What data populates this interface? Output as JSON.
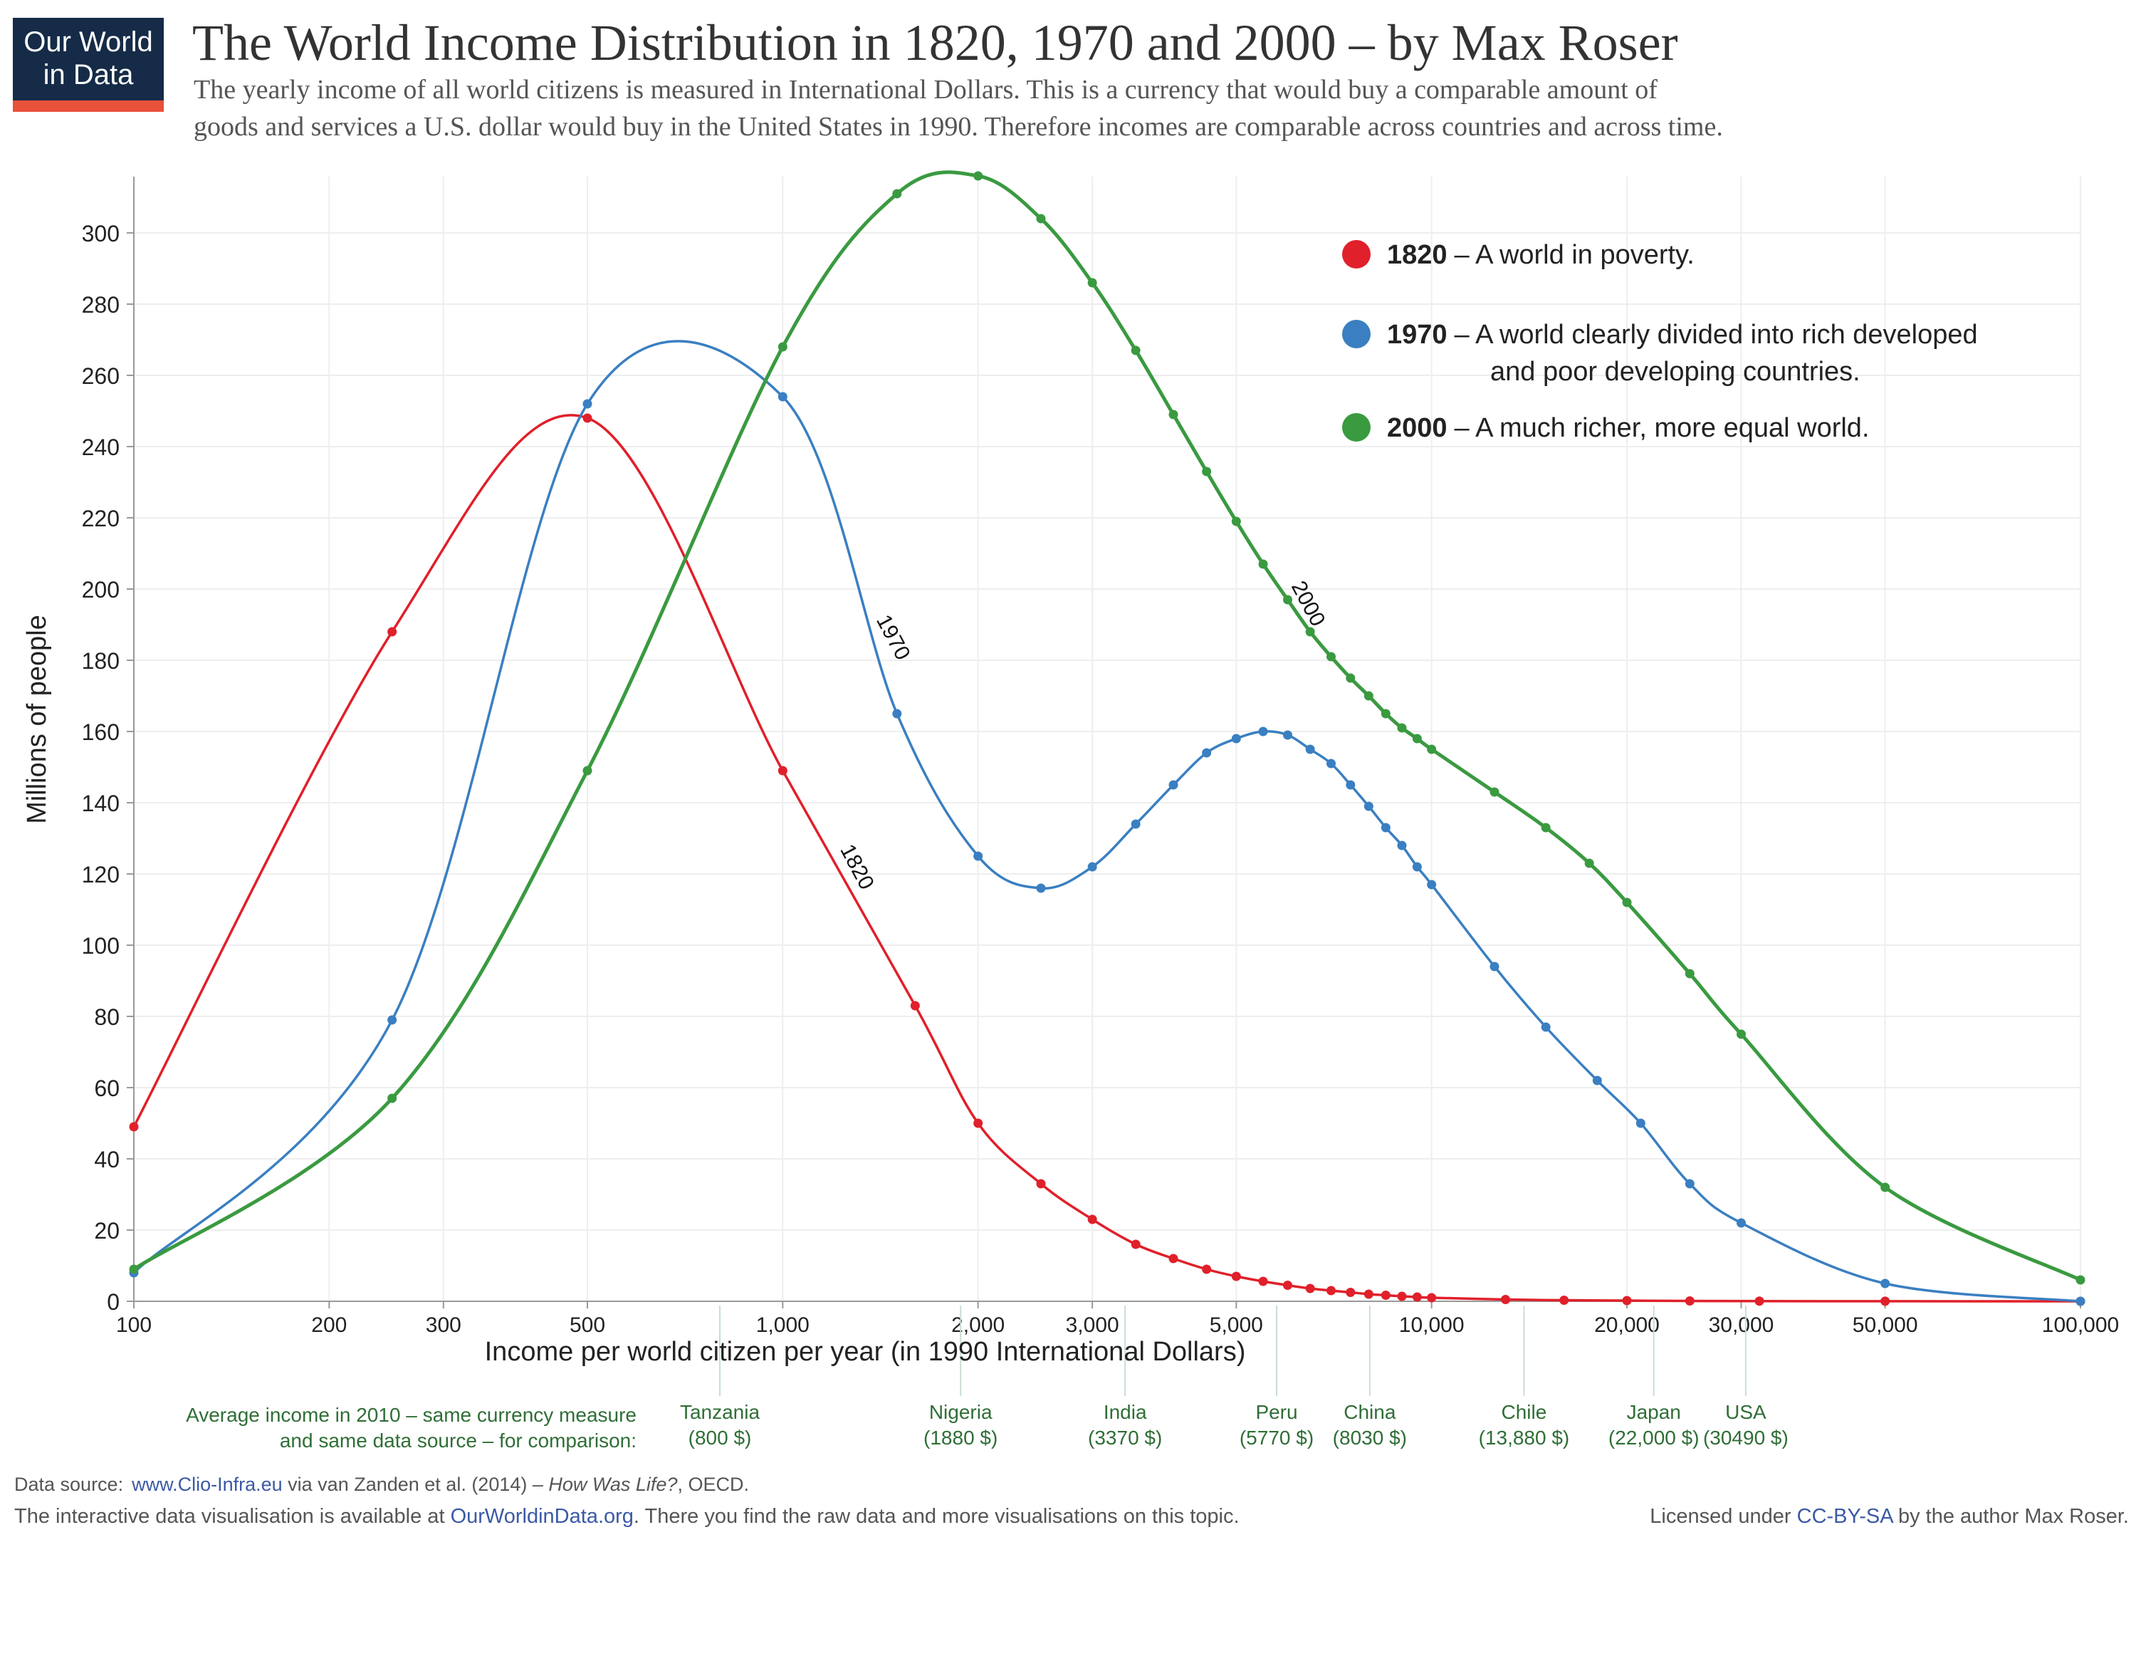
{
  "logo": {
    "line1": "Our World",
    "line2": "in Data",
    "bg_color": "#152b47",
    "stripe_color": "#e8513a"
  },
  "header": {
    "title": "The World Income Distribution in 1820, 1970 and 2000 – by Max Roser",
    "subtitle_line1": "The yearly income of all world citizens is measured in International Dollars. This is a currency that would buy a comparable amount of",
    "subtitle_line2": "goods and services a U.S. dollar would buy in the United States in 1990. Therefore incomes are comparable across countries and across time."
  },
  "chart_data": {
    "type": "line",
    "xlabel": "Income per world citizen per year (in 1990 International Dollars)",
    "ylabel": "Millions of people",
    "x_scale": "log",
    "xlim": [
      100,
      100000
    ],
    "ylim": [
      0,
      315
    ],
    "grid": true,
    "x_ticks": [
      {
        "value": 100,
        "label": "100"
      },
      {
        "value": 200,
        "label": "200"
      },
      {
        "value": 300,
        "label": "300"
      },
      {
        "value": 500,
        "label": "500"
      },
      {
        "value": 1000,
        "label": "1,000"
      },
      {
        "value": 2000,
        "label": "2,000"
      },
      {
        "value": 3000,
        "label": "3,000"
      },
      {
        "value": 5000,
        "label": "5,000"
      },
      {
        "value": 10000,
        "label": "10,000"
      },
      {
        "value": 20000,
        "label": "20,000"
      },
      {
        "value": 30000,
        "label": "30,000"
      },
      {
        "value": 50000,
        "label": "50,000"
      },
      {
        "value": 100000,
        "label": "100,000"
      }
    ],
    "y_ticks": [
      0,
      20,
      40,
      60,
      80,
      100,
      120,
      140,
      160,
      180,
      200,
      220,
      240,
      260,
      280,
      300
    ],
    "series": [
      {
        "name": "1820",
        "color": "#e0202a",
        "curve_label": "1820",
        "x": [
          100,
          250,
          500,
          1000,
          1600,
          2000,
          2500,
          3000,
          3500,
          4000,
          4500,
          5000,
          5500,
          6000,
          6500,
          7000,
          7500,
          8000,
          8500,
          9000,
          9500,
          10000,
          13000,
          16000,
          20000,
          25000,
          32000,
          50000,
          100000
        ],
        "y": [
          49,
          188,
          248,
          149,
          83,
          50,
          33,
          23,
          16,
          12,
          9,
          7,
          5.6,
          4.5,
          3.6,
          3,
          2.5,
          2,
          1.7,
          1.4,
          1.2,
          1,
          0.5,
          0.3,
          0.2,
          0.1,
          0.05,
          0.02,
          0
        ]
      },
      {
        "name": "1970",
        "color": "#3a7fc1",
        "curve_label": "1970",
        "x": [
          100,
          250,
          500,
          1000,
          1500,
          2000,
          2500,
          3000,
          3500,
          4000,
          4500,
          5000,
          5500,
          6000,
          6500,
          7000,
          7500,
          8000,
          8500,
          9000,
          9500,
          10000,
          12500,
          15000,
          18000,
          21000,
          25000,
          30000,
          50000,
          100000
        ],
        "y": [
          8,
          79,
          252,
          254,
          165,
          125,
          116,
          122,
          134,
          145,
          154,
          158,
          160,
          159,
          155,
          151,
          145,
          139,
          133,
          128,
          122,
          117,
          94,
          77,
          62,
          50,
          33,
          22,
          5,
          0
        ]
      },
      {
        "name": "2000",
        "color": "#3a9a40",
        "curve_label": "2000",
        "x": [
          100,
          250,
          500,
          1000,
          1500,
          2000,
          2500,
          3000,
          3500,
          4000,
          4500,
          5000,
          5500,
          6000,
          6500,
          7000,
          7500,
          8000,
          8500,
          9000,
          9500,
          10000,
          12500,
          15000,
          17500,
          20000,
          25000,
          30000,
          50000,
          100000
        ],
        "y": [
          9,
          57,
          149,
          268,
          311,
          316,
          304,
          286,
          267,
          249,
          233,
          219,
          207,
          197,
          188,
          181,
          175,
          170,
          165,
          161,
          158,
          155,
          143,
          133,
          123,
          112,
          92,
          75,
          32,
          6
        ]
      }
    ]
  },
  "legend": [
    {
      "year": "1820",
      "text": "– A world in poverty.",
      "text2": ""
    },
    {
      "year": "1970",
      "text": "– A world clearly divided into rich developed",
      "text2": "and poor developing countries."
    },
    {
      "year": "2000",
      "text": "– A much richer, more equal world.",
      "text2": ""
    }
  ],
  "comparison": {
    "intro_line1": "Average income in 2010 – same currency measure",
    "intro_line2": "and same data source – for comparison:",
    "color": "#2f6e36",
    "countries": [
      {
        "name": "Tanzania",
        "value_label": "(800 $)",
        "income": 800
      },
      {
        "name": "Nigeria",
        "value_label": "(1880 $)",
        "income": 1880
      },
      {
        "name": "India",
        "value_label": "(3370 $)",
        "income": 3370
      },
      {
        "name": "Peru",
        "value_label": "(5770 $)",
        "income": 5770
      },
      {
        "name": "China",
        "value_label": "(8030 $)",
        "income": 8030
      },
      {
        "name": "Chile",
        "value_label": "(13,880 $)",
        "income": 13880
      },
      {
        "name": "Japan",
        "value_label": "(22,000 $)",
        "income": 22000
      },
      {
        "name": "USA",
        "value_label": "(30490 $)",
        "income": 30490
      }
    ]
  },
  "footer": {
    "source_prefix": "Data source:",
    "source_link": "www.Clio-Infra.eu",
    "source_mid": " via van Zanden et al. (2014) – ",
    "source_italic": "How Was Life?",
    "source_end": ", OECD.",
    "interactive_prefix": "The interactive data visualisation is available at ",
    "interactive_link": "OurWorldinData.org",
    "interactive_end": ". There you find the raw data and more visualisations on this topic.",
    "license_prefix": "Licensed under ",
    "license_link": "CC-BY-SA",
    "license_end": " by the author Max Roser.",
    "link_color": "#3b59a5"
  }
}
